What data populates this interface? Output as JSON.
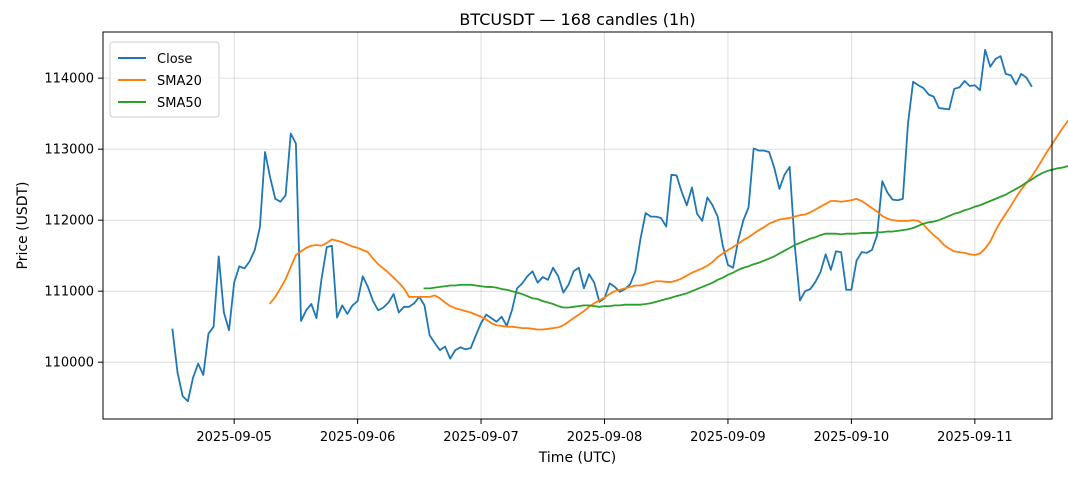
{
  "chart_data": {
    "type": "line",
    "title": "BTCUSDT — 168 candles (1h)",
    "xlabel": "Time (UTC)",
    "ylabel": "Price (USDT)",
    "x_ticks": [
      "2025-09-05",
      "2025-09-06",
      "2025-09-07",
      "2025-09-08",
      "2025-09-09",
      "2025-09-10",
      "2025-09-11"
    ],
    "y_ticks": [
      110000,
      111000,
      112000,
      113000,
      114000
    ],
    "ylim": [
      109200,
      114650
    ],
    "x_range_hours": [
      -13.5,
      171.0
    ],
    "x_tick_hours": [
      12,
      36,
      60,
      84,
      108,
      132,
      156
    ],
    "grid": true,
    "legend_position": "upper-left",
    "series": [
      {
        "name": "Close",
        "color": "#1f77b4",
        "start_hour": 0,
        "values": [
          110460,
          109850,
          109520,
          109450,
          109780,
          109980,
          109820,
          110400,
          110500,
          111490,
          110700,
          110450,
          111120,
          111350,
          111320,
          111420,
          111580,
          111900,
          112960,
          112600,
          112300,
          112260,
          112350,
          113220,
          113080,
          110580,
          110730,
          110820,
          110620,
          111180,
          111620,
          111640,
          110630,
          110800,
          110680,
          110800,
          110860,
          111210,
          111060,
          110860,
          110730,
          110770,
          110840,
          110960,
          110700,
          110780,
          110780,
          110830,
          110920,
          110800,
          110380,
          110270,
          110170,
          110220,
          110050,
          110170,
          110210,
          110180,
          110200,
          110380,
          110550,
          110670,
          110620,
          110570,
          110640,
          110510,
          110730,
          111040,
          111110,
          111210,
          111280,
          111120,
          111200,
          111160,
          111330,
          111210,
          110980,
          111090,
          111280,
          111330,
          111040,
          111240,
          111120,
          110850,
          110900,
          111110,
          111060,
          110990,
          111030,
          111100,
          111280,
          111740,
          112100,
          112050,
          112050,
          112030,
          111910,
          112640,
          112630,
          112400,
          112210,
          112460,
          112090,
          111990,
          112320,
          112210,
          112050,
          111640,
          111370,
          111330,
          111720,
          112000,
          112180,
          113010,
          112980,
          112980,
          112960,
          112740,
          112440,
          112640,
          112750,
          111640,
          110870,
          111000,
          111030,
          111130,
          111270,
          111520,
          111300,
          111560,
          111550,
          111020,
          111020,
          111430,
          111550,
          111540,
          111580,
          111790,
          112550,
          112390,
          112290,
          112280,
          112300,
          113360,
          113950,
          113900,
          113860,
          113770,
          113740,
          113580,
          113570,
          113560,
          113850,
          113870,
          113960,
          113890,
          113900,
          113830,
          114400,
          114160,
          114270,
          114310,
          114060,
          114040,
          113910,
          114060,
          114010,
          113890
        ]
      },
      {
        "name": "SMA20",
        "color": "#ff7f0e",
        "start_hour": 19,
        "values": [
          110830,
          110920,
          111040,
          111170,
          111340,
          111510,
          111560,
          111610,
          111640,
          111650,
          111640,
          111680,
          111730,
          111710,
          111690,
          111660,
          111630,
          111610,
          111580,
          111550,
          111460,
          111380,
          111320,
          111260,
          111190,
          111120,
          111040,
          110920,
          110920,
          110920,
          110920,
          110920,
          110940,
          110900,
          110840,
          110790,
          110760,
          110740,
          110720,
          110700,
          110670,
          110640,
          110600,
          110550,
          110520,
          110510,
          110500,
          110500,
          110490,
          110480,
          110480,
          110470,
          110460,
          110460,
          110470,
          110480,
          110490,
          110520,
          110570,
          110620,
          110670,
          110720,
          110780,
          110830,
          110870,
          110910,
          110960,
          111000,
          111020,
          111040,
          111060,
          111080,
          111080,
          111100,
          111120,
          111140,
          111140,
          111130,
          111130,
          111150,
          111180,
          111220,
          111260,
          111290,
          111320,
          111360,
          111410,
          111480,
          111530,
          111580,
          111620,
          111670,
          111720,
          111760,
          111810,
          111860,
          111900,
          111950,
          111980,
          112010,
          112020,
          112030,
          112050,
          112070,
          112080,
          112110,
          112150,
          112190,
          112230,
          112270,
          112270,
          112260,
          112270,
          112280,
          112300,
          112270,
          112220,
          112170,
          112120,
          112060,
          112020,
          112000,
          111990,
          111990,
          111990,
          112000,
          111990,
          111940,
          111860,
          111790,
          111730,
          111650,
          111600,
          111560,
          111550,
          111540,
          111520,
          111510,
          111530,
          111600,
          111700,
          111850,
          111980,
          112090,
          112200,
          112320,
          112430,
          112520,
          112610,
          112720,
          112840,
          112960,
          113070,
          113180,
          113290,
          113390,
          113480,
          113560,
          113640,
          113730,
          113820,
          113890,
          113920,
          113930,
          113930,
          113940
        ]
      },
      {
        "name": "SMA50",
        "color": "#2ca02c",
        "start_hour": 49,
        "values": [
          111040,
          111040,
          111050,
          111060,
          111070,
          111080,
          111080,
          111090,
          111090,
          111090,
          111080,
          111070,
          111060,
          111060,
          111050,
          111030,
          111020,
          111000,
          110980,
          110960,
          110930,
          110900,
          110890,
          110860,
          110840,
          110820,
          110790,
          110770,
          110770,
          110780,
          110790,
          110800,
          110800,
          110790,
          110780,
          110790,
          110790,
          110800,
          110800,
          110810,
          110810,
          110810,
          110810,
          110820,
          110830,
          110850,
          110870,
          110890,
          110910,
          110930,
          110950,
          110970,
          111000,
          111030,
          111060,
          111090,
          111120,
          111160,
          111190,
          111230,
          111260,
          111300,
          111330,
          111350,
          111380,
          111400,
          111430,
          111460,
          111490,
          111530,
          111570,
          111610,
          111650,
          111680,
          111710,
          111740,
          111760,
          111790,
          111810,
          111810,
          111810,
          111800,
          111810,
          111810,
          111810,
          111820,
          111820,
          111820,
          111830,
          111830,
          111840,
          111840,
          111850,
          111860,
          111870,
          111890,
          111920,
          111950,
          111970,
          111980,
          112000,
          112030,
          112060,
          112090,
          112110,
          112140,
          112160,
          112190,
          112210,
          112240,
          112270,
          112300,
          112330,
          112360,
          112400,
          112440,
          112480,
          112530,
          112570,
          112620,
          112660,
          112690,
          112710,
          112730,
          112740,
          112760,
          112780,
          112790,
          112810
        ]
      }
    ]
  }
}
